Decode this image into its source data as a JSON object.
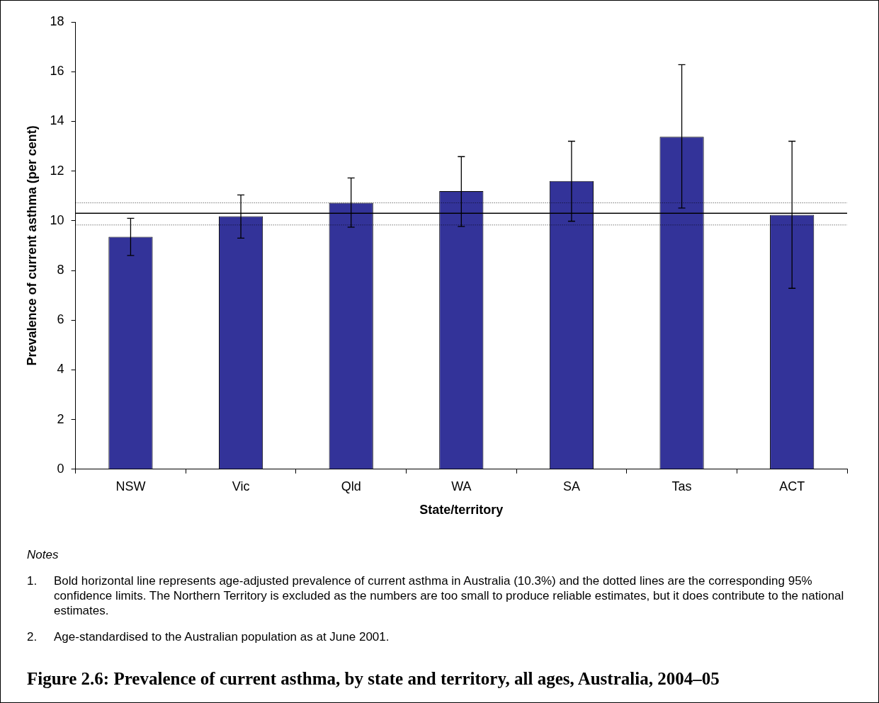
{
  "chart_data": {
    "type": "bar",
    "xlabel": "State/territory",
    "ylabel": "Prevalence of current asthma (per cent)",
    "title": "Figure 2.6: Prevalence of current asthma, by state and territory, all ages, Australia, 2004–05",
    "categories": [
      "NSW",
      "Vic",
      "Qld",
      "WA",
      "SA",
      "Tas",
      "ACT"
    ],
    "values": [
      9.35,
      10.18,
      10.72,
      11.19,
      11.6,
      13.38,
      10.24
    ],
    "errors": [
      [
        8.6,
        10.1
      ],
      [
        9.3,
        11.04
      ],
      [
        9.74,
        11.72
      ],
      [
        9.77,
        12.58
      ],
      [
        9.98,
        13.2
      ],
      [
        10.51,
        16.28
      ],
      [
        7.28,
        13.2
      ]
    ],
    "color": "#333399",
    "ylim": [
      0,
      18
    ],
    "yticks": [
      0,
      2,
      4,
      6,
      8,
      10,
      12,
      14,
      16,
      18
    ],
    "grid": false,
    "legend": false,
    "ref_lines": [
      {
        "axis": "y",
        "value": 10.3,
        "color": "#000000",
        "line_style": "solid"
      },
      {
        "axis": "y",
        "value": 10.72,
        "color": "#000000",
        "line_style": "dotted"
      },
      {
        "axis": "y",
        "value": 9.83,
        "color": "#000000",
        "line_style": "dotted"
      }
    ],
    "annotations": [
      "Notes",
      "1.",
      "Bold horizontal line represents age-adjusted prevalence of current asthma in Australia (10.3%) and the dotted lines are the corresponding 95% confidence limits. The Northern Territory is excluded as the numbers are too small to produce reliable estimates, but it does contribute to the national estimates.",
      "2.",
      "Age-standardised to the Australian population as at June 2001."
    ]
  }
}
